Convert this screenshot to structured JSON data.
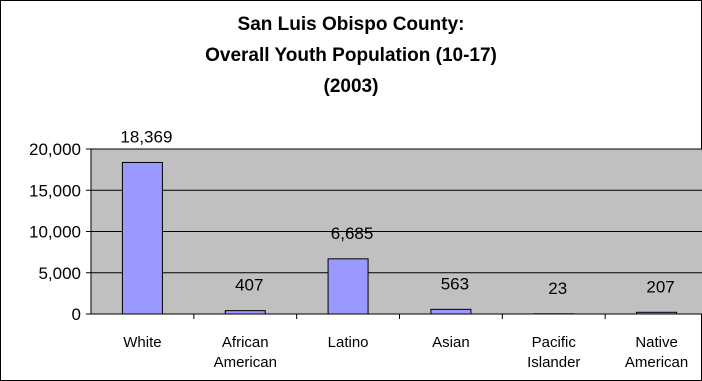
{
  "chart_data": {
    "type": "bar",
    "title_lines": [
      "San Luis Obispo County:",
      "Overall Youth Population (10-17)",
      "(2003)"
    ],
    "categories": [
      [
        "White"
      ],
      [
        "African",
        "American"
      ],
      [
        "Latino"
      ],
      [
        "Asian"
      ],
      [
        "Pacific",
        "Islander"
      ],
      [
        "Native",
        "American"
      ]
    ],
    "values": [
      18369,
      407,
      6685,
      563,
      23,
      207
    ],
    "data_labels": [
      "18,369",
      "407",
      "6,685",
      "563",
      "23",
      "207"
    ],
    "y_ticks": [
      0,
      5000,
      10000,
      15000,
      20000
    ],
    "y_tick_labels": [
      "0",
      "5,000",
      "10,000",
      "15,000",
      "20,000"
    ],
    "ylim": [
      0,
      20000
    ],
    "grid": true,
    "legend": "none",
    "colors": {
      "bar_fill": "#9999ff",
      "bar_stroke": "#000000",
      "plot_background": "#c0c0c0",
      "gridline": "#000000"
    }
  }
}
